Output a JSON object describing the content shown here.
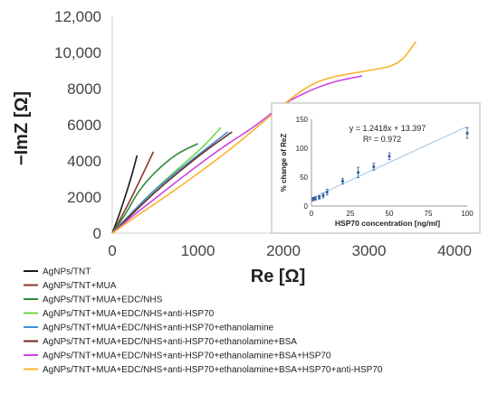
{
  "chart_data": [
    {
      "type": "line",
      "xlabel": "Re [Ω]",
      "ylabel": "−ImZ [Ω]",
      "xlim": [
        0,
        4000
      ],
      "ylim": [
        0,
        12000
      ],
      "xticks": [
        "0",
        "1000",
        "2000",
        "3000",
        "4000"
      ],
      "yticks": [
        "0",
        "2000",
        "4000",
        "6000",
        "8000",
        "10,000",
        "12,000"
      ],
      "legend_position": "bottom",
      "series": [
        {
          "name": "AgNPs/TNT",
          "color": "#1a1a1a",
          "points": [
            [
              0,
              0
            ],
            [
              80,
              1000
            ],
            [
              170,
              2300
            ],
            [
              240,
              3400
            ],
            [
              290,
              4300
            ]
          ]
        },
        {
          "name": "AgNPs/TNT+MUA",
          "color": "#8a3a2b",
          "points": [
            [
              0,
              0
            ],
            [
              120,
              1000
            ],
            [
              250,
              2200
            ],
            [
              370,
              3400
            ],
            [
              480,
              4500
            ]
          ]
        },
        {
          "name": "AgNPs/TNT+MUA+EDC/NHS",
          "color": "#2e8b3e",
          "points": [
            [
              0,
              0
            ],
            [
              150,
              1000
            ],
            [
              300,
              2300
            ],
            [
              500,
              3400
            ],
            [
              750,
              4400
            ],
            [
              1000,
              4950
            ]
          ]
        },
        {
          "name": "AgNPs/TNT+MUA+EDC/NHS+anti-HSP70",
          "color": "#6fd64a",
          "points": [
            [
              0,
              0
            ],
            [
              200,
              1000
            ],
            [
              450,
              2200
            ],
            [
              750,
              3500
            ],
            [
              1050,
              4700
            ],
            [
              1270,
              5850
            ]
          ]
        },
        {
          "name": "AgNPs/TNT+MUA+EDC/NHS+anti-HSP70+ethanolamine",
          "color": "#3f8fd8",
          "points": [
            [
              0,
              0
            ],
            [
              200,
              1000
            ],
            [
              450,
              2200
            ],
            [
              750,
              3400
            ],
            [
              1050,
              4500
            ],
            [
              1350,
              5600
            ]
          ]
        },
        {
          "name": "AgNPs/TNT+MUA+EDC/NHS+anti-HSP70+ethanolamine+BSA",
          "color": "#6b2e1f",
          "points": [
            [
              0,
              0
            ],
            [
              220,
              1000
            ],
            [
              480,
              2200
            ],
            [
              780,
              3400
            ],
            [
              1100,
              4600
            ],
            [
              1400,
              5600
            ]
          ]
        },
        {
          "name": "AgNPs/TNT+MUA+EDC/NHS+anti-HSP70+ethanolamine+BSA+HSP70",
          "color": "#cc44e0",
          "points": [
            [
              0,
              0
            ],
            [
              250,
              1000
            ],
            [
              550,
              2100
            ],
            [
              900,
              3400
            ],
            [
              1300,
              4800
            ],
            [
              1700,
              6000
            ],
            [
              2000,
              7200
            ],
            [
              2500,
              8300
            ],
            [
              2920,
              8700
            ]
          ]
        },
        {
          "name": "AgNPs/TNT+MUA+EDC/NHS+anti-HSP70+ethanolamine+BSA+HSP70+anti-HSP70",
          "color": "#f7b52a",
          "points": [
            [
              0,
              0
            ],
            [
              300,
              1000
            ],
            [
              650,
              2100
            ],
            [
              1000,
              3300
            ],
            [
              1400,
              4700
            ],
            [
              1800,
              6300
            ],
            [
              2200,
              7900
            ],
            [
              2500,
              8600
            ],
            [
              3000,
              9000
            ],
            [
              3350,
              9300
            ],
            [
              3550,
              10600
            ]
          ]
        }
      ]
    },
    {
      "type": "scatter",
      "xlabel": "HSP70 concentration [ng/ml]",
      "ylabel": "% change of ReZ",
      "xlim": [
        0,
        100
      ],
      "ylim": [
        0,
        150
      ],
      "xticks": [
        "0",
        "25",
        "50",
        "75",
        "100"
      ],
      "yticks": [
        "0",
        "50",
        "100",
        "150"
      ],
      "equation": "y = 1.2418x + 13.397",
      "r_squared": "R² = 0.972",
      "trendline": {
        "slope": 1.2418,
        "intercept": 13.397,
        "color": "#9ec4e8"
      },
      "marker_color": "#2f5f9e",
      "points": [
        {
          "x": 1,
          "y": 12,
          "err": 3
        },
        {
          "x": 2.5,
          "y": 13,
          "err": 3
        },
        {
          "x": 5,
          "y": 15,
          "err": 3
        },
        {
          "x": 7.5,
          "y": 18,
          "err": 4
        },
        {
          "x": 10,
          "y": 24,
          "err": 5
        },
        {
          "x": 20,
          "y": 43,
          "err": 5
        },
        {
          "x": 30,
          "y": 58,
          "err": 9
        },
        {
          "x": 40,
          "y": 68,
          "err": 6
        },
        {
          "x": 50,
          "y": 86,
          "err": 6
        },
        {
          "x": 100,
          "y": 126,
          "err": 9
        }
      ]
    }
  ]
}
